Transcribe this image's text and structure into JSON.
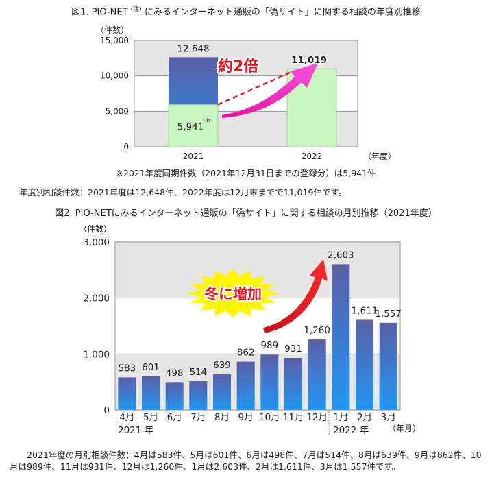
{
  "chart_data": [
    {
      "type": "bar",
      "title": "図1. PIO-NET にみるインターネット通販の「偽サイト」に関する相談の年度別推移",
      "title_pre": "図1. PIO-NET",
      "title_sup": "(注)",
      "title_post": "にみるインターネット通販の「偽サイト」に関する相談の年度別推移",
      "ylabel": "（件数）",
      "xlabel": "（年度）",
      "ylim": [
        0,
        15000
      ],
      "yticks": [
        "0",
        "5,000",
        "10,000",
        "15,000"
      ],
      "categories": [
        "2021",
        "2022"
      ],
      "values": [
        12648,
        11019
      ],
      "value_labels": [
        "12,648",
        "11,019"
      ],
      "same_period_value": 5941,
      "same_period_label": "5,941",
      "same_period_mark": "※",
      "annotation": "約2倍",
      "colors": {
        "bar_dark": "#5b5fa6",
        "bar_mid": "#2a8de6",
        "bar_light": "#c8f5c0",
        "arrow": "#e8139c",
        "annotation": "#e8141c",
        "value_label": "#e8141c"
      }
    },
    {
      "type": "bar",
      "title": "図2. PIO-NETにみるインターネット通販の「偽サイト」に関する相談の月別推移（2021年度）",
      "ylabel": "（件数）",
      "xlabel": "（年月）",
      "ylim": [
        0,
        3000
      ],
      "yticks": [
        "0",
        "1,000",
        "2,000",
        "3,000"
      ],
      "categories": [
        "4月",
        "5月",
        "6月",
        "7月",
        "8月",
        "9月",
        "10月",
        "11月",
        "12月",
        "1月",
        "2月",
        "3月"
      ],
      "values": [
        583,
        601,
        498,
        514,
        639,
        862,
        989,
        931,
        1260,
        2603,
        1611,
        1557
      ],
      "value_labels": [
        "583",
        "601",
        "498",
        "514",
        "639",
        "862",
        "989",
        "931",
        "1,260",
        "2,603",
        "1,611",
        "1,557"
      ],
      "year_labels": [
        "2021 年",
        "2022 年"
      ],
      "annotation": "冬に増加",
      "colors": {
        "bar_top": "#5b5fa6",
        "bar_bottom": "#2196f3",
        "arrow": "#e8141c",
        "burst": "#fff700"
      }
    }
  ],
  "notes": {
    "same_period_note": "※2021年度同期件数（2021年12月31日までの登録分）は5,941件",
    "yearly_summary": "年度別相談件数：2021年度は12,648件、2022年度は12月末までで11,019件です。",
    "monthly_summary": "2021年度の月別相談件数：4月は583件、5月は601件、6月は498件、7月は514件、8月は639件、9月は862件、10月は989件、11月は931件、12月は1,260件、1月は2,603件、2月は1,611件、3月は1,557件です。"
  }
}
